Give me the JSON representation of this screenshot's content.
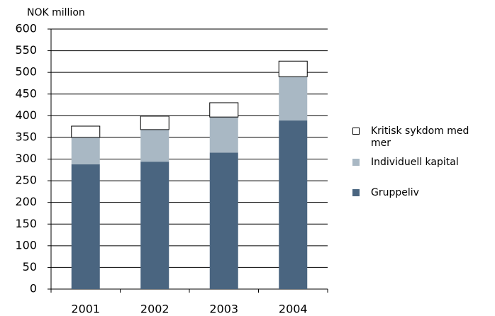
{
  "chart_data": {
    "type": "stacked_bar",
    "y_label": "NOK million",
    "categories": [
      "2001",
      "2002",
      "2003",
      "2004"
    ],
    "series": [
      {
        "name": "Gruppeliv",
        "color": "#4a6580",
        "values": [
          288,
          294,
          315,
          389
        ]
      },
      {
        "name": "Individuell kapital",
        "color": "#a9b8c4",
        "values": [
          62,
          74,
          82,
          101
        ]
      },
      {
        "name": "Kritisk sykdom med mer",
        "color": "#ffffff",
        "values": [
          26,
          31,
          33,
          36
        ]
      }
    ],
    "ylim": [
      0,
      600
    ],
    "yticks": [
      0,
      50,
      100,
      150,
      200,
      250,
      300,
      350,
      400,
      450,
      500,
      550,
      600
    ],
    "grid": true,
    "legend": "right"
  }
}
